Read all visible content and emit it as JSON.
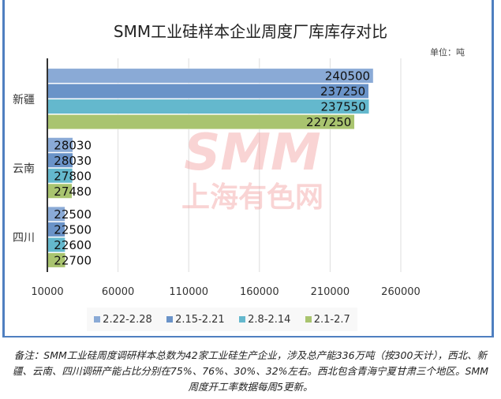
{
  "chart_data": {
    "type": "bar",
    "orientation": "horizontal",
    "title": "SMM工业硅样本企业周度厂库库存对比",
    "unit_label": "单位：吨",
    "categories": [
      "新疆",
      "云南",
      "四川"
    ],
    "series": [
      {
        "name": "2.22-2.28",
        "color": "#8aaad6",
        "values": [
          240500,
          28030,
          22500
        ]
      },
      {
        "name": "2.15-2.21",
        "color": "#6a93c8",
        "values": [
          237250,
          28030,
          22500
        ]
      },
      {
        "name": "2.8-2.14",
        "color": "#64b8cd",
        "values": [
          237550,
          27800,
          22600
        ]
      },
      {
        "name": "2.1-2.7",
        "color": "#a9c46f",
        "values": [
          227250,
          27480,
          22700
        ]
      }
    ],
    "xlim": [
      10000,
      260000
    ],
    "xticks": [
      "10000",
      "60000",
      "110000",
      "160000",
      "210000",
      "260000"
    ],
    "grid": true,
    "legend_position": "bottom",
    "watermark": "SMM 上海有色网"
  },
  "footer": "备注：SMM工业硅周度调研样本总数为42家工业硅生产企业，涉及总产能336万吨（按300天计），西北、新疆、云南、四川调研产能占比分别在75%、76%、30%、32%左右。西北包含青海宁夏甘肃三个地区。SMM周度开工率数据每周5更新。"
}
